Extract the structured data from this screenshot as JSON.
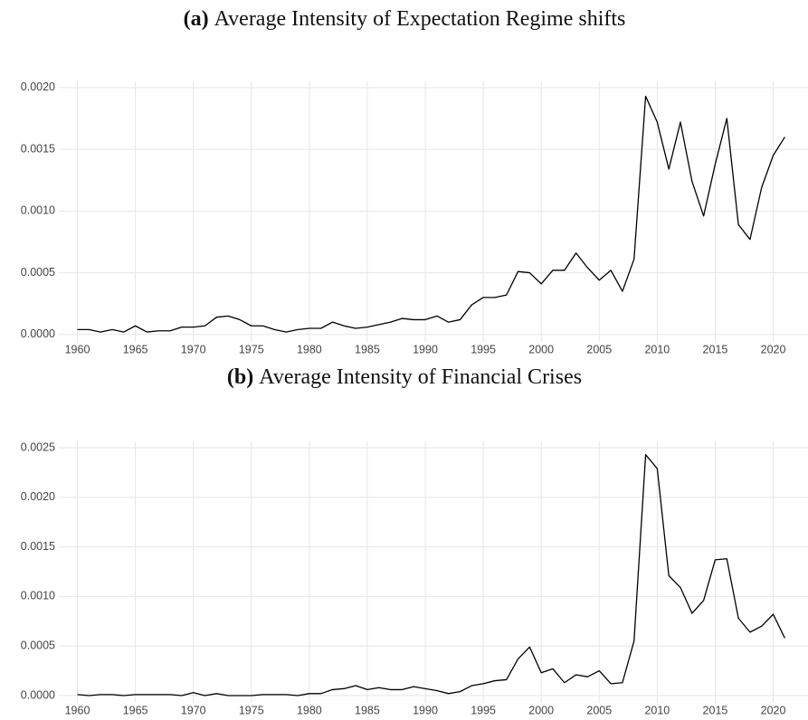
{
  "chart_data": [
    {
      "type": "line",
      "label": "(a)",
      "title": "Average Intensity of Expectation Regime shifts",
      "x": [
        1960,
        1961,
        1962,
        1963,
        1964,
        1965,
        1966,
        1967,
        1968,
        1969,
        1970,
        1971,
        1972,
        1973,
        1974,
        1975,
        1976,
        1977,
        1978,
        1979,
        1980,
        1981,
        1982,
        1983,
        1984,
        1985,
        1986,
        1987,
        1988,
        1989,
        1990,
        1991,
        1992,
        1993,
        1994,
        1995,
        1996,
        1997,
        1998,
        1999,
        2000,
        2001,
        2002,
        2003,
        2004,
        2005,
        2006,
        2007,
        2008,
        2009,
        2010,
        2011,
        2012,
        2013,
        2014,
        2015,
        2016,
        2017,
        2018,
        2019,
        2020,
        2021
      ],
      "values": [
        4e-05,
        4e-05,
        2e-05,
        4e-05,
        2e-05,
        7e-05,
        2e-05,
        3e-05,
        3e-05,
        6e-05,
        6e-05,
        7e-05,
        0.00014,
        0.00015,
        0.00012,
        7e-05,
        7e-05,
        4e-05,
        2e-05,
        4e-05,
        5e-05,
        5e-05,
        0.0001,
        7e-05,
        5e-05,
        6e-05,
        8e-05,
        0.0001,
        0.00013,
        0.00012,
        0.00012,
        0.00015,
        0.0001,
        0.00012,
        0.00024,
        0.0003,
        0.0003,
        0.00032,
        0.00051,
        0.0005,
        0.00041,
        0.00052,
        0.00052,
        0.00066,
        0.00054,
        0.00044,
        0.00052,
        0.00035,
        0.00061,
        0.00193,
        0.00172,
        0.00134,
        0.00172,
        0.00124,
        0.00096,
        0.00138,
        0.00175,
        0.00089,
        0.00077,
        0.00119,
        0.00145,
        0.0016
      ],
      "color": "#000000",
      "xlim": [
        1958.4,
        2023
      ],
      "xticks": [
        1960,
        1965,
        1970,
        1975,
        1980,
        1985,
        1990,
        1995,
        2000,
        2005,
        2010,
        2015,
        2020
      ],
      "ylim": [
        -6e-05,
        0.00205
      ],
      "yticks": [
        {
          "value": 0,
          "label": "0.0000"
        },
        {
          "value": 0.0005,
          "label": "0.0005"
        },
        {
          "value": 0.001,
          "label": "0.0010"
        },
        {
          "value": 0.0015,
          "label": "0.0015"
        },
        {
          "value": 0.002,
          "label": "0.0020"
        }
      ],
      "grid": true
    },
    {
      "type": "line",
      "label": "(b)",
      "title": "Average Intensity of Financial Crises",
      "x": [
        1960,
        1961,
        1962,
        1963,
        1964,
        1965,
        1966,
        1967,
        1968,
        1969,
        1970,
        1971,
        1972,
        1973,
        1974,
        1975,
        1976,
        1977,
        1978,
        1979,
        1980,
        1981,
        1982,
        1983,
        1984,
        1985,
        1986,
        1987,
        1988,
        1989,
        1990,
        1991,
        1992,
        1993,
        1994,
        1995,
        1996,
        1997,
        1998,
        1999,
        2000,
        2001,
        2002,
        2003,
        2004,
        2005,
        2006,
        2007,
        2008,
        2009,
        2010,
        2011,
        2012,
        2013,
        2014,
        2015,
        2016,
        2017,
        2018,
        2019,
        2020,
        2021
      ],
      "values": [
        1e-05,
        0.0,
        1e-05,
        1e-05,
        0.0,
        1e-05,
        1e-05,
        1e-05,
        1e-05,
        0.0,
        3e-05,
        0.0,
        2e-05,
        0.0,
        0.0,
        0.0,
        1e-05,
        1e-05,
        1e-05,
        0.0,
        2e-05,
        2e-05,
        6e-05,
        7e-05,
        0.0001,
        6e-05,
        8e-05,
        6e-05,
        6e-05,
        9e-05,
        7e-05,
        5e-05,
        2e-05,
        4e-05,
        0.0001,
        0.00012,
        0.00015,
        0.00016,
        0.00037,
        0.00049,
        0.00023,
        0.00027,
        0.00013,
        0.00021,
        0.00019,
        0.00025,
        0.00012,
        0.00013,
        0.00055,
        0.00243,
        0.00229,
        0.00121,
        0.00109,
        0.00083,
        0.00096,
        0.00137,
        0.00138,
        0.00078,
        0.00064,
        0.0007,
        0.00082,
        0.00058
      ],
      "color": "#000000",
      "xlim": [
        1958.4,
        2023
      ],
      "xticks": [
        1960,
        1965,
        1970,
        1975,
        1980,
        1985,
        1990,
        1995,
        2000,
        2005,
        2010,
        2015,
        2020
      ],
      "ylim": [
        -7.3e-05,
        0.002564
      ],
      "yticks": [
        {
          "value": 0,
          "label": "0.0000"
        },
        {
          "value": 0.0005,
          "label": "0.0005"
        },
        {
          "value": 0.001,
          "label": "0.0010"
        },
        {
          "value": 0.0015,
          "label": "0.0015"
        },
        {
          "value": 0.002,
          "label": "0.0020"
        },
        {
          "value": 0.0025,
          "label": "0.0025"
        }
      ],
      "grid": true
    }
  ]
}
